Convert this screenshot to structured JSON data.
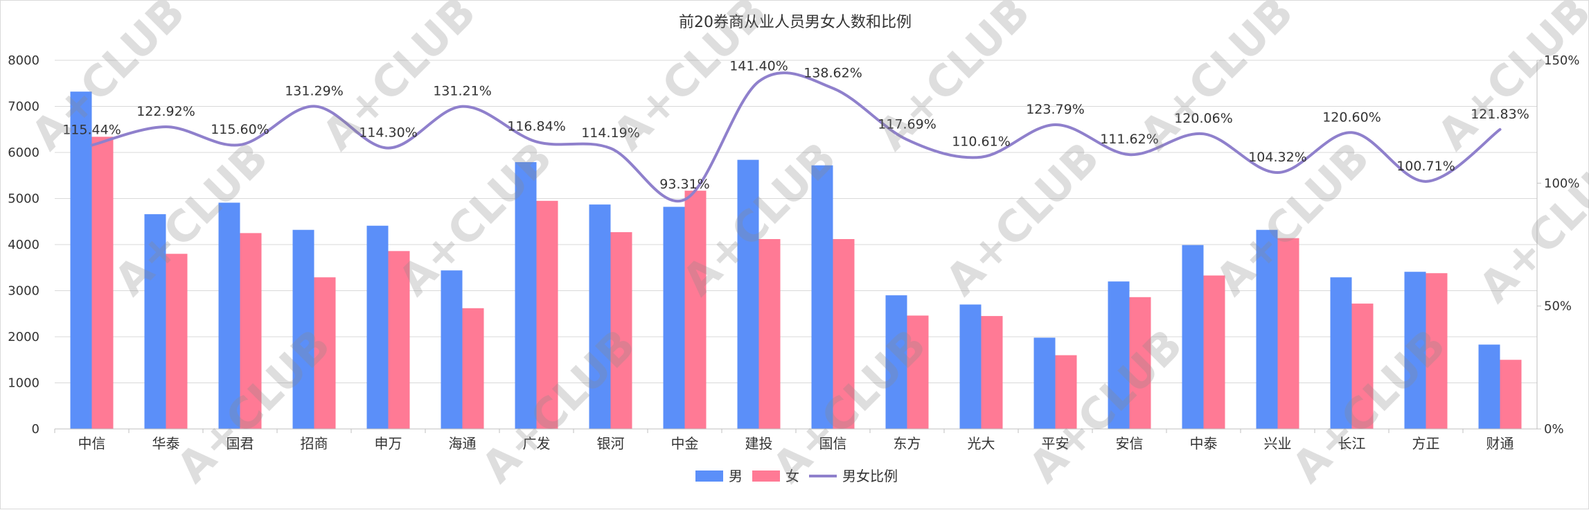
{
  "chart_data": {
    "type": "bar",
    "title": "前20券商从业人员男女人数和比例",
    "categories": [
      "中信",
      "华泰",
      "国君",
      "招商",
      "申万",
      "海通",
      "广发",
      "银河",
      "中金",
      "建投",
      "国信",
      "东方",
      "光大",
      "平安",
      "安信",
      "中泰",
      "兴业",
      "长江",
      "方正",
      "财通"
    ],
    "series": [
      {
        "name": "男",
        "type": "bar",
        "color": "#5b8ff9",
        "values": [
          7320,
          4660,
          4910,
          4320,
          4410,
          3440,
          5790,
          4870,
          4820,
          5840,
          5720,
          2900,
          2700,
          1980,
          3200,
          3990,
          4320,
          3290,
          3410,
          1830
        ]
      },
      {
        "name": "女",
        "type": "bar",
        "color": "#ff7a95",
        "values": [
          6340,
          3800,
          4250,
          3290,
          3860,
          2620,
          4950,
          4270,
          5170,
          4120,
          4120,
          2460,
          2450,
          1600,
          2860,
          3330,
          4140,
          2720,
          3380,
          1500
        ]
      },
      {
        "name": "男女比例",
        "type": "line",
        "color": "#8f80cc",
        "axis": "right",
        "values": [
          115.44,
          122.92,
          115.6,
          131.29,
          114.3,
          131.21,
          116.84,
          114.19,
          93.31,
          141.4,
          138.62,
          117.69,
          110.61,
          123.79,
          111.62,
          120.06,
          104.32,
          120.6,
          100.71,
          121.83
        ],
        "labels": [
          "115.44%",
          "122.92%",
          "115.60%",
          "131.29%",
          "114.30%",
          "131.21%",
          "116.84%",
          "114.19%",
          "93.31%",
          "141.40%",
          "138.62%",
          "117.69%",
          "110.61%",
          "123.79%",
          "111.62%",
          "120.06%",
          "104.32%",
          "120.60%",
          "100.71%",
          "121.83%"
        ]
      }
    ],
    "y_left": {
      "min": 0,
      "max": 8000,
      "ticks": [
        "0",
        "1000",
        "2000",
        "3000",
        "4000",
        "5000",
        "6000",
        "7000",
        "8000"
      ]
    },
    "y_right": {
      "min": 0,
      "max": 150,
      "ticks": [
        "0%",
        "50%",
        "100%",
        "150%"
      ]
    },
    "grid": true,
    "legend_position": "bottom",
    "watermark": "A+CLUB"
  }
}
